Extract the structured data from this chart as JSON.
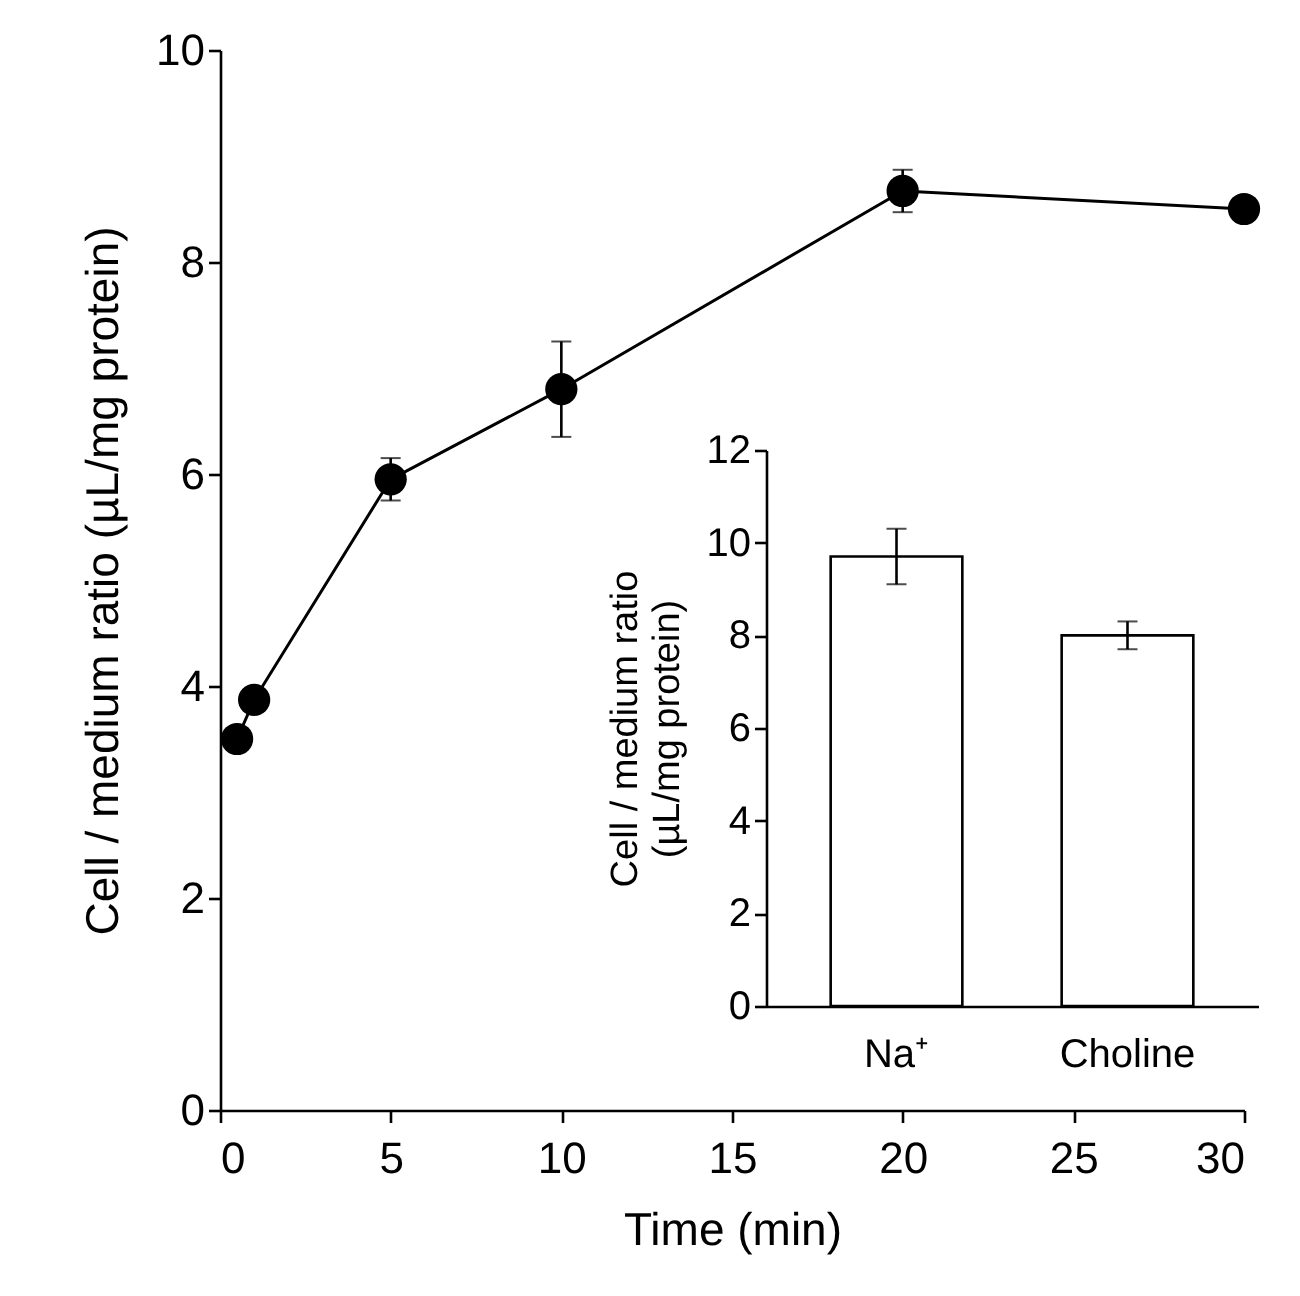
{
  "chart_data": [
    {
      "type": "line",
      "xlabel": "Time (min)",
      "ylabel": "Cell / medium ratio (µL/mg protein)",
      "x": [
        0.5,
        1,
        5,
        10,
        20,
        30
      ],
      "xlim": [
        0,
        30
      ],
      "xticks": [
        0,
        5,
        10,
        15,
        20,
        25,
        30
      ],
      "ylim": [
        0,
        10
      ],
      "yticks": [
        0,
        2,
        4,
        6,
        8,
        10
      ],
      "grid": false,
      "marker": "circle",
      "line_style": "solid",
      "series": [
        {
          "color": "#000000",
          "values": [
            3.5,
            3.87,
            5.95,
            6.8,
            8.67,
            8.5
          ],
          "errors": [
            null,
            null,
            0.2,
            0.45,
            0.2,
            null
          ]
        }
      ]
    },
    {
      "type": "bar",
      "ylabel": "Cell / medium ratio\n(µL/mg protein)",
      "categories": [
        "Na⁺",
        "Choline"
      ],
      "ylim": [
        0,
        12
      ],
      "yticks": [
        0,
        2,
        4,
        6,
        8,
        10,
        12
      ],
      "grid": false,
      "series": [
        {
          "color": "#ffffff",
          "values": [
            9.7,
            8.0
          ],
          "errors": [
            0.6,
            0.3
          ]
        }
      ]
    }
  ]
}
